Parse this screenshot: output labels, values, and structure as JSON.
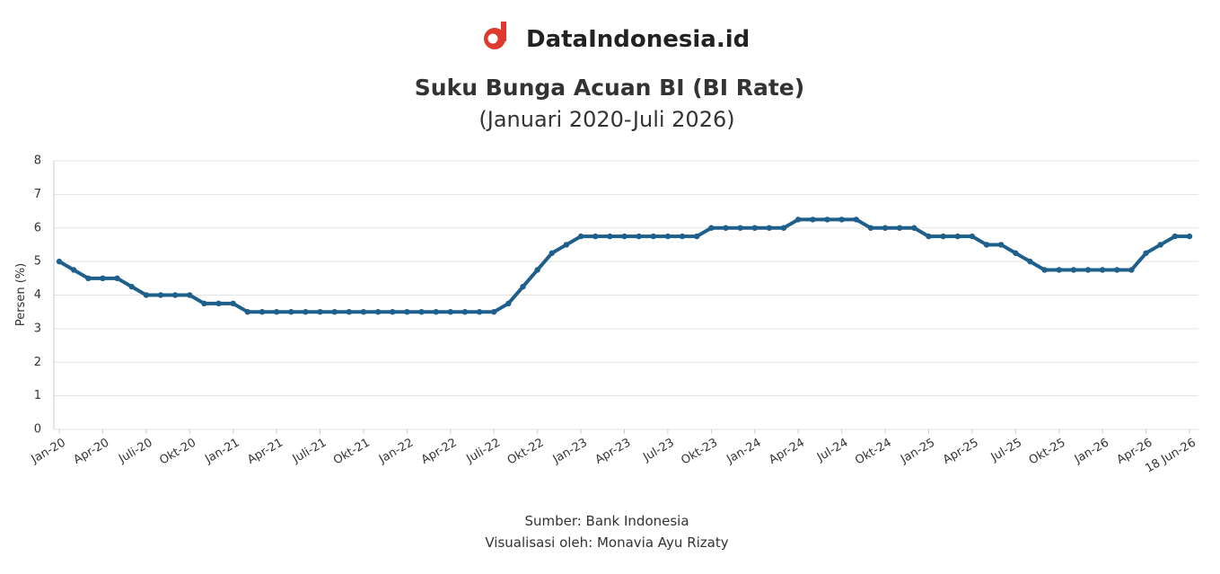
{
  "brand": "DataIndonesia.id",
  "chart_data": {
    "type": "line",
    "title": "Suku Bunga Acuan BI (BI Rate)",
    "subtitle": "(Januari 2020-Juli 2026)",
    "y_label": "Persen (%)",
    "source": "Sumber: Bank Indonesia",
    "credit": "Visualisasi oleh: Monavia Ayu Rizaty",
    "categories": [
      "Jan-20",
      null,
      null,
      "Apr-20",
      null,
      null,
      "Juli-20",
      null,
      null,
      "Okt-20",
      null,
      null,
      "Jan-21",
      null,
      null,
      "Apr-21",
      null,
      null,
      "Juli-21",
      null,
      null,
      "Okt-21",
      null,
      null,
      "Jan-22",
      null,
      null,
      "Apr-22",
      null,
      null,
      "Juli-22",
      null,
      null,
      "Okt-22",
      null,
      null,
      "Jan-23",
      null,
      null,
      "Apr-23",
      null,
      null,
      "Jul-23",
      null,
      null,
      "Okt-23",
      null,
      null,
      "Jan-24",
      null,
      null,
      "Apr-24",
      null,
      null,
      "Jul-24",
      null,
      null,
      "Okt-24",
      null,
      null,
      "Jan-25",
      null,
      null,
      "Apr-25",
      null,
      null,
      "Jul-25",
      null,
      null,
      "Okt-25",
      null,
      null,
      "Jan-26",
      null,
      null,
      "Apr-26",
      null,
      null,
      "18 Jun-26"
    ],
    "series": [
      {
        "name": "BI Rate",
        "color": "#1f5f8b",
        "values": [
          5.0,
          4.75,
          4.5,
          4.5,
          4.5,
          4.25,
          4.0,
          4.0,
          4.0,
          4.0,
          3.75,
          3.75,
          3.75,
          3.5,
          3.5,
          3.5,
          3.5,
          3.5,
          3.5,
          3.5,
          3.5,
          3.5,
          3.5,
          3.5,
          3.5,
          3.5,
          3.5,
          3.5,
          3.5,
          3.5,
          3.5,
          3.75,
          4.25,
          4.75,
          5.25,
          5.5,
          5.75,
          5.75,
          5.75,
          5.75,
          5.75,
          5.75,
          5.75,
          5.75,
          5.75,
          6.0,
          6.0,
          6.0,
          6.0,
          6.0,
          6.0,
          6.25,
          6.25,
          6.25,
          6.25,
          6.25,
          6.0,
          6.0,
          6.0,
          6.0,
          5.75,
          5.75,
          5.75,
          5.75,
          5.5,
          5.5,
          5.25,
          5.0,
          4.75,
          4.75,
          4.75,
          4.75,
          4.75,
          4.75,
          4.75,
          5.25,
          5.5,
          5.75,
          5.75
        ]
      }
    ],
    "ylim": [
      0,
      8
    ],
    "yticks": [
      0,
      1,
      2,
      3,
      4,
      5,
      6,
      7,
      8
    ],
    "grid": true
  }
}
